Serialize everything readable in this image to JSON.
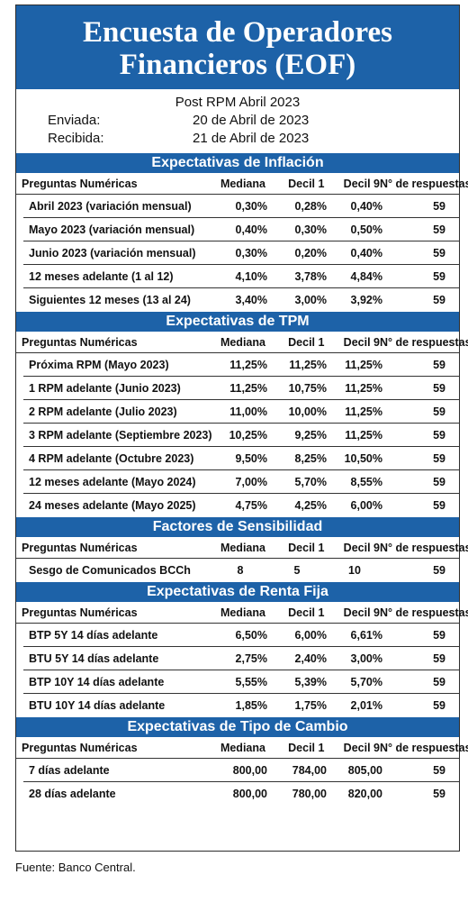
{
  "title_line1": "Encuesta de Operadores",
  "title_line2": "Financieros (EOF)",
  "subtitle": "Post RPM Abril 2023",
  "sent_label": "Enviada:",
  "sent_value": "20 de Abril de 2023",
  "received_label": "Recibida:",
  "received_value": "21 de Abril de 2023",
  "columns": {
    "question": "Preguntas Numéricas",
    "median": "Mediana",
    "decile1": "Decil 1",
    "decile9": "Decil 9",
    "responses": "N° de respuestas"
  },
  "sections": [
    {
      "title": "Expectativas de Inflación",
      "rows": [
        [
          "Abril 2023 (variación mensual)",
          "0,30%",
          "0,28%",
          "0,40%",
          "59"
        ],
        [
          "Mayo 2023 (variación mensual)",
          "0,40%",
          "0,30%",
          "0,50%",
          "59"
        ],
        [
          "Junio 2023 (variación mensual)",
          "0,30%",
          "0,20%",
          "0,40%",
          "59"
        ],
        [
          "12 meses adelante (1 al 12)",
          "4,10%",
          "3,78%",
          "4,84%",
          "59"
        ],
        [
          "Siguientes 12 meses (13 al 24)",
          "3,40%",
          "3,00%",
          "3,92%",
          "59"
        ]
      ]
    },
    {
      "title": "Expectativas de TPM",
      "rows": [
        [
          "Próxima RPM (Mayo 2023)",
          "11,25%",
          "11,25%",
          "11,25%",
          "59"
        ],
        [
          "1 RPM adelante (Junio 2023)",
          "11,25%",
          "10,75%",
          "11,25%",
          "59"
        ],
        [
          "2 RPM adelante (Julio 2023)",
          "11,00%",
          "10,00%",
          "11,25%",
          "59"
        ],
        [
          "3 RPM adelante (Septiembre 2023)",
          "10,25%",
          "9,25%",
          "11,25%",
          "59"
        ],
        [
          "4 RPM adelante (Octubre 2023)",
          "9,50%",
          "8,25%",
          "10,50%",
          "59"
        ],
        [
          "12 meses adelante (Mayo 2024)",
          "7,00%",
          "5,70%",
          "8,55%",
          "59"
        ],
        [
          "24 meses adelante (Mayo 2025)",
          "4,75%",
          "4,25%",
          "6,00%",
          "59"
        ]
      ]
    },
    {
      "title": "Factores de Sensibilidad",
      "rows": [
        [
          "Sesgo de Comunicados BCCh",
          "8",
          "5",
          "10",
          "59"
        ]
      ]
    },
    {
      "title": "Expectativas  de Renta Fija",
      "rows": [
        [
          "BTP 5Y 14 días adelante",
          "6,50%",
          "6,00%",
          "6,61%",
          "59"
        ],
        [
          "BTU 5Y 14 días adelante",
          "2,75%",
          "2,40%",
          "3,00%",
          "59"
        ],
        [
          "BTP 10Y 14 días adelante",
          "5,55%",
          "5,39%",
          "5,70%",
          "59"
        ],
        [
          "BTU 10Y 14 días adelante",
          "1,85%",
          "1,75%",
          "2,01%",
          "59"
        ]
      ]
    },
    {
      "title": "Expectativas  de Tipo de Cambio",
      "rows": [
        [
          "7 días adelante",
          "800,00",
          "784,00",
          "805,00",
          "59"
        ],
        [
          "28 días adelante",
          "800,00",
          "780,00",
          "820,00",
          "59"
        ]
      ]
    }
  ],
  "footer": "Fuente: Banco Central."
}
